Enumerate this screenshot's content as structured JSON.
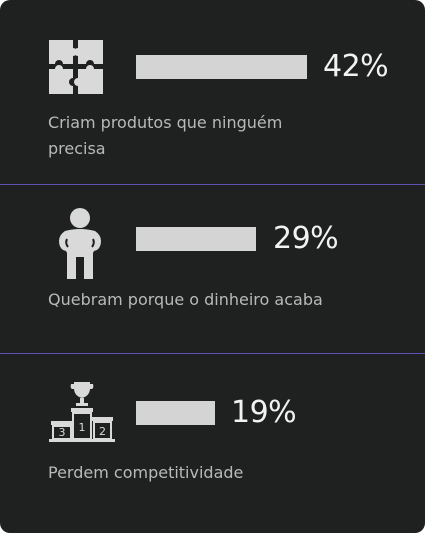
{
  "items": [
    {
      "icon": "puzzle-icon",
      "percent_text": "42%",
      "percent": 42,
      "label_line1": "Criam  produtos que ninguém",
      "label_line2": "precisa"
    },
    {
      "icon": "person-icon",
      "percent_text": "29%",
      "percent": 29,
      "label_line1": "Quebram porque o dinheiro acaba"
    },
    {
      "icon": "podium-trophy-icon",
      "percent_text": "19%",
      "percent": 19,
      "label_line1": "Perdem competitividade",
      "podium_numbers": [
        "1",
        "2",
        "3"
      ]
    }
  ],
  "colors": {
    "background": "#1f2020",
    "bar": "#d4d4d4",
    "divider": "#6a5acd",
    "text": "#b9b9b9"
  }
}
